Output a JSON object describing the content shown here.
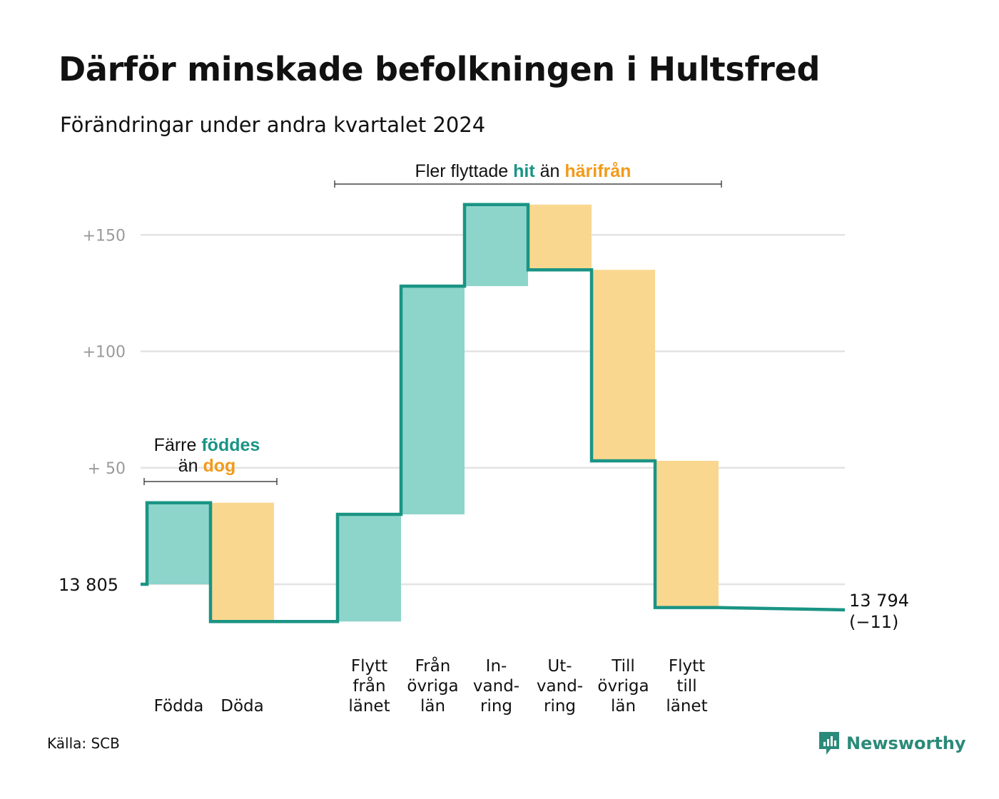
{
  "title": "Därför minskade befolkningen i Hultsfred",
  "subtitle": "Förändringar under andra kvartalet 2024",
  "source": "Källa: SCB",
  "brand": "Newsworthy",
  "colors": {
    "increase": "#8dd5cb",
    "decrease": "#fad78f",
    "line": "#1a9484",
    "hi_green": "#1a9484",
    "hi_orange": "#f29a1a",
    "grid": "#e3e3e3"
  },
  "annotations": {
    "births": {
      "line1_prefix": "Färre ",
      "line1_highlight": "föddes",
      "line2_prefix": "än ",
      "line2_highlight": "dog"
    },
    "migration": {
      "prefix": "Fler flyttade ",
      "highlight1": "hit",
      "middle": " än ",
      "highlight2": "härifrån"
    }
  },
  "chart_data": {
    "type": "bar",
    "subtype": "waterfall",
    "start_label": "13  805",
    "end_label": "13 794",
    "end_change_label": "(−11)",
    "yticks": [
      "+150",
      "+100",
      "+  50"
    ],
    "ytick_values": [
      150,
      100,
      50
    ],
    "ylim": [
      -20,
      165
    ],
    "grid": true,
    "categories": [
      {
        "label": [
          "Födda"
        ],
        "change": 35,
        "kind": "increase"
      },
      {
        "label": [
          "Döda"
        ],
        "change": -51,
        "kind": "decrease"
      },
      {
        "label": [],
        "change": 0,
        "kind": "gap"
      },
      {
        "label": [
          "Flytt",
          "från",
          "länet"
        ],
        "change": 46,
        "kind": "increase"
      },
      {
        "label": [
          "Från",
          "övriga",
          "län"
        ],
        "change": 98,
        "kind": "increase"
      },
      {
        "label": [
          "In-",
          "vand-",
          "ring"
        ],
        "change": 35,
        "kind": "increase"
      },
      {
        "label": [
          "Ut-",
          "vand-",
          "ring"
        ],
        "change": -28,
        "kind": "decrease"
      },
      {
        "label": [
          "Till",
          "övriga",
          "län"
        ],
        "change": -82,
        "kind": "decrease"
      },
      {
        "label": [
          "Flytt",
          "till",
          "länet"
        ],
        "change": -63,
        "kind": "decrease"
      }
    ],
    "end_value": -11
  }
}
